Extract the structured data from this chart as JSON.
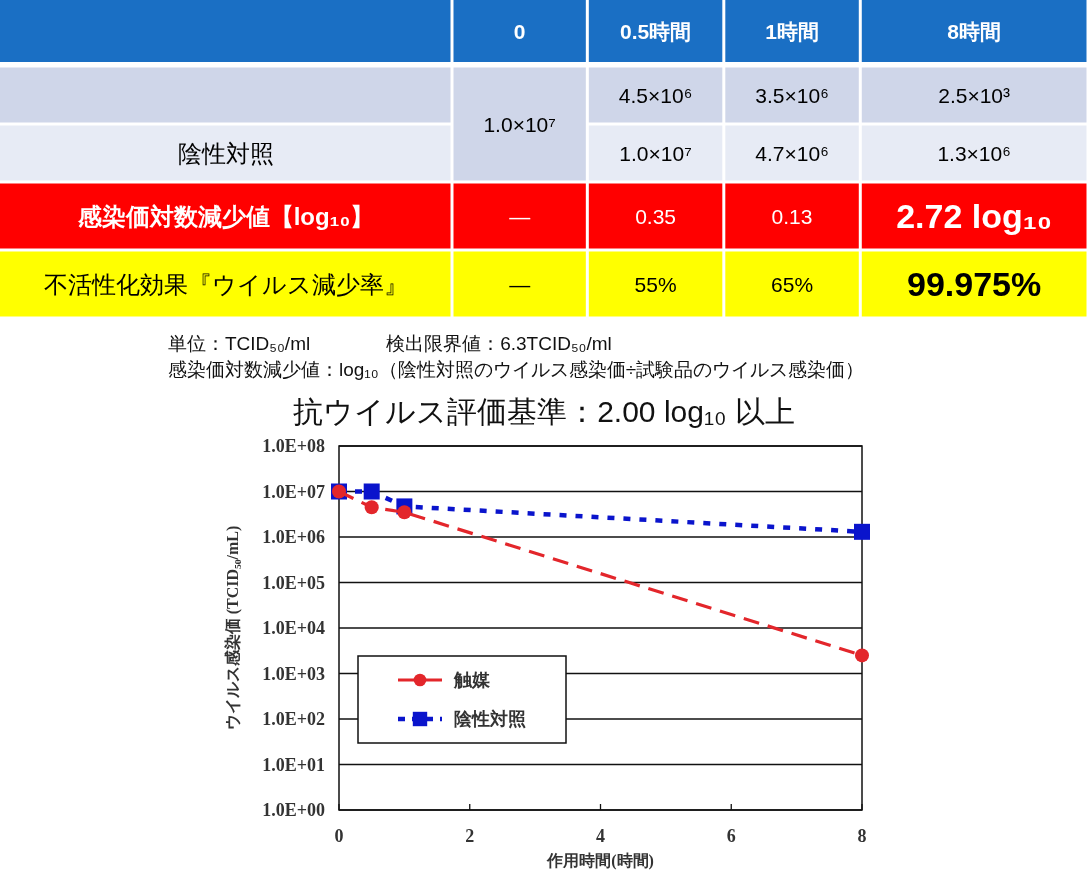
{
  "chart_data": [
    {
      "type": "other",
      "categories": [
        "0",
        "0.5時間",
        "1時間",
        "8時間"
      ],
      "y_categories": [
        null,
        "陰性対照",
        "感染価対数減少値【log₁₀】",
        "不活性化効果『ウイルス減少率』"
      ],
      "cell_labels": [
        [
          "1.0×10⁷",
          "4.5×10⁶",
          "3.5×10⁶",
          "2.5×10³"
        ],
        [
          null,
          "1.0×10⁷",
          "4.7×10⁶",
          "1.3×10⁶"
        ],
        [
          "—",
          "0.35",
          "0.13",
          "2.72 log₁₀"
        ],
        [
          "—",
          "55%",
          "65%",
          "99.975%"
        ]
      ],
      "annotations": [
        "単位：TCID₅₀/ml　　　　検出限界値：6.3TCID₅₀/ml",
        "感染価対数減少値：log₁₀（陰性対照のウイルス感染価÷試験品のウイルス感染価）"
      ]
    },
    {
      "type": "line",
      "title": "抗ウイルス評価基準：2.00 log₁₀ 以上",
      "xlabel": "作用時間(時間)",
      "ylabel": "ウイルス感染価 (TCID₅₀/mL)",
      "x": [
        0,
        0.5,
        1,
        8
      ],
      "series": [
        {
          "name": "触媒",
          "color": "#e3262b",
          "values": [
            10000000,
            4500000,
            3500000,
            2500
          ],
          "marker": "circle",
          "line_style": "dashed"
        },
        {
          "name": "陰性対照",
          "color": "#0a14cc",
          "values": [
            10000000,
            10000000,
            4700000,
            1300000
          ],
          "marker": "square",
          "line_style": "dotted"
        }
      ],
      "log": true,
      "xlim": [
        0,
        8
      ],
      "xticks": [
        0,
        2,
        4,
        6,
        8
      ],
      "ylim": [
        1,
        100000000
      ],
      "yticks": [
        {
          "value": 1,
          "label": "1.0E+00"
        },
        {
          "value": 10,
          "label": "1.0E+01"
        },
        {
          "value": 100,
          "label": "1.0E+02"
        },
        {
          "value": 1000,
          "label": "1.0E+03"
        },
        {
          "value": 10000,
          "label": "1.0E+04"
        },
        {
          "value": 100000,
          "label": "1.0E+05"
        },
        {
          "value": 1000000,
          "label": "1.0E+06"
        },
        {
          "value": 10000000,
          "label": "1.0E+07"
        },
        {
          "value": 100000000,
          "label": "1.0E+08"
        }
      ],
      "grid": "y",
      "legend": "bottom left"
    }
  ]
}
